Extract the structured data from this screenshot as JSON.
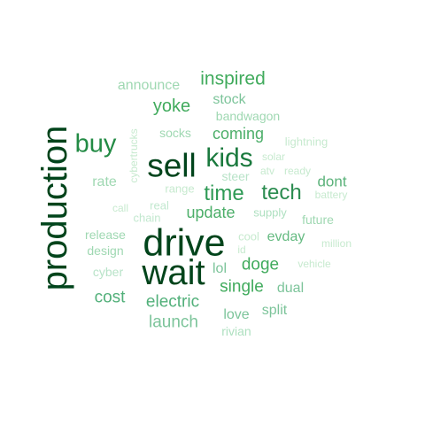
{
  "words": [
    {
      "text": "production",
      "color": "#00441b",
      "vertical": true
    },
    {
      "text": "drive",
      "color": "#00441b"
    },
    {
      "text": "wait",
      "color": "#00441b"
    },
    {
      "text": "sell",
      "color": "#00441b"
    },
    {
      "text": "kids",
      "color": "#1b7a3e"
    },
    {
      "text": "buy",
      "color": "#238b45"
    },
    {
      "text": "tech",
      "color": "#2b8c50"
    },
    {
      "text": "time",
      "color": "#2e9a55"
    },
    {
      "text": "inspired",
      "color": "#41ab5d"
    },
    {
      "text": "yoke",
      "color": "#41ab5d"
    },
    {
      "text": "doge",
      "color": "#41ab5d"
    },
    {
      "text": "single",
      "color": "#41ab5d"
    },
    {
      "text": "update",
      "color": "#4daf6a"
    },
    {
      "text": "coming",
      "color": "#4daf6a"
    },
    {
      "text": "electric",
      "color": "#52b07a"
    },
    {
      "text": "cost",
      "color": "#52b07a"
    },
    {
      "text": "dont",
      "color": "#5bb27a"
    },
    {
      "text": "evday",
      "color": "#66bb82"
    },
    {
      "text": "stock",
      "color": "#7cc49a"
    },
    {
      "text": "launch",
      "color": "#7cc49a"
    },
    {
      "text": "love",
      "color": "#7cc49a"
    },
    {
      "text": "split",
      "color": "#7cc49a"
    },
    {
      "text": "dual",
      "color": "#7cc49a"
    },
    {
      "text": "lol",
      "color": "#7cc49a"
    },
    {
      "text": "announce",
      "color": "#9fd8b2"
    },
    {
      "text": "bandwagon",
      "color": "#9fd8b2"
    },
    {
      "text": "socks",
      "color": "#9fd8b2"
    },
    {
      "text": "rate",
      "color": "#9fd8b2"
    },
    {
      "text": "release",
      "color": "#9fd8b2"
    },
    {
      "text": "design",
      "color": "#9fd8b2"
    },
    {
      "text": "future",
      "color": "#9fd8b2"
    },
    {
      "text": "supply",
      "color": "#aee0c0"
    },
    {
      "text": "rivian",
      "color": "#aee0c0"
    },
    {
      "text": "steer",
      "color": "#b8e3c8"
    },
    {
      "text": "cyber",
      "color": "#b8e3c8"
    },
    {
      "text": "chain",
      "color": "#c2e8cf"
    },
    {
      "text": "real",
      "color": "#c2e8cf"
    },
    {
      "text": "range",
      "color": "#c7eacf"
    },
    {
      "text": "cybertrucks",
      "color": "#c7eacf",
      "vertical": true
    },
    {
      "text": "call",
      "color": "#c7eacf"
    },
    {
      "text": "lightning",
      "color": "#c7eacf"
    },
    {
      "text": "solar",
      "color": "#c7eacf"
    },
    {
      "text": "atv",
      "color": "#c7eacf"
    },
    {
      "text": "ready",
      "color": "#c7eacf"
    },
    {
      "text": "battery",
      "color": "#c7eacf"
    },
    {
      "text": "cool",
      "color": "#c7eacf"
    },
    {
      "text": "id",
      "color": "#c7eacf"
    },
    {
      "text": "million",
      "color": "#c7eacf"
    },
    {
      "text": "vehicle",
      "color": "#c7eacf"
    }
  ]
}
